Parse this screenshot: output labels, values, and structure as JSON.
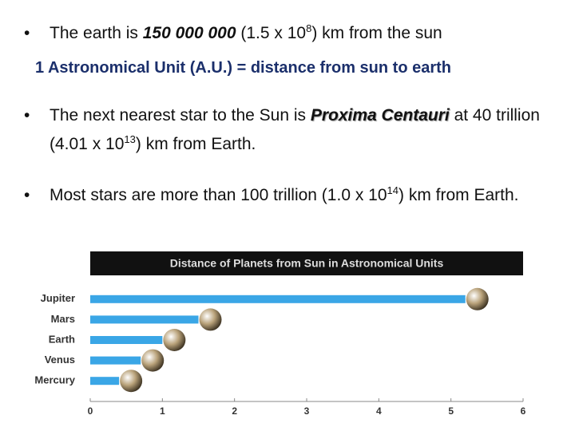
{
  "bullets": [
    {
      "segments": [
        {
          "text": "The earth is "
        },
        {
          "text": "150 000 000",
          "style": "bold-italic"
        },
        {
          "text": " (1.5 x 10"
        },
        {
          "text": "8",
          "style": "sup"
        },
        {
          "text": ") km from the sun"
        }
      ]
    },
    {
      "segments": [
        {
          "text": "The next nearest star to the Sun is "
        },
        {
          "text": "Proxima Centauri",
          "style": "bold-italic-shadow"
        },
        {
          "text": " at 40 trillion (4.01 x 10"
        },
        {
          "text": "13",
          "style": "sup"
        },
        {
          "text": ") km from Earth."
        }
      ]
    },
    {
      "segments": [
        {
          "text": "Most stars are more than 100 trillion (1.0 x 10"
        },
        {
          "text": "14",
          "style": "sup"
        },
        {
          "text": ") km from Earth."
        }
      ]
    }
  ],
  "definition": "1 Astronomical Unit (A.U.) = distance from sun to earth",
  "chart_data": {
    "type": "hbar",
    "title": "Distance of Planets from Sun in Astronomical Units",
    "categories": [
      "Jupiter",
      "Mars",
      "Earth",
      "Venus",
      "Mercury"
    ],
    "values": [
      5.2,
      1.5,
      1.0,
      0.7,
      0.4
    ],
    "color": "#3aa6e6",
    "xlim": [
      0,
      6
    ],
    "xticks": [
      0,
      1,
      2,
      3,
      4,
      5,
      6
    ]
  }
}
